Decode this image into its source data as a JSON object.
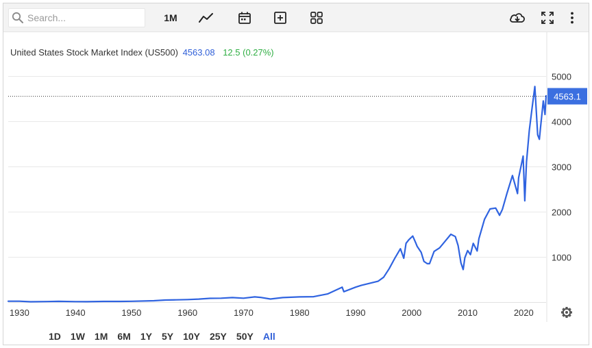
{
  "toolbar": {
    "search_placeholder": "Search...",
    "interval_label": "1M",
    "icons": [
      "search-icon",
      "line-chart-icon",
      "calendar-icon",
      "add-box-icon",
      "grid-icon",
      "download-cloud-icon",
      "fullscreen-icon",
      "more-vertical-icon"
    ]
  },
  "header": {
    "name": "United States Stock Market Index (US500)",
    "price": "4563.08",
    "change": "12.5 (0.27%)"
  },
  "colors": {
    "line": "#2f63e0",
    "price_badge": "#3b6fe0",
    "positive": "#2fae43",
    "grid": "#e8e8e8"
  },
  "ranges": {
    "items": [
      "1D",
      "1W",
      "1M",
      "6M",
      "1Y",
      "5Y",
      "10Y",
      "25Y",
      "50Y",
      "All"
    ],
    "active": "All"
  },
  "chart_data": {
    "type": "line",
    "x_unit": "year",
    "xlim": [
      1928,
      2024
    ],
    "ylim": [
      0,
      5000
    ],
    "x_ticks": [
      1930,
      1940,
      1950,
      1960,
      1970,
      1980,
      1990,
      2000,
      2010,
      2020
    ],
    "y_ticks": [
      1000,
      2000,
      3000,
      4000,
      5000
    ],
    "y_axis_side": "right",
    "grid": "horizontal",
    "last_value_label": "4563.1",
    "last_value": 4563.08,
    "series": [
      {
        "x": [
          1928.0,
          1930.0,
          1932.0,
          1935.0,
          1937.0,
          1940.0,
          1942.0,
          1945.0,
          1948.0,
          1950.0,
          1954.0,
          1956.0,
          1958.0,
          1960.0,
          1962.0,
          1964.0,
          1966.0,
          1968.0,
          1970.0,
          1972.0,
          1973.0,
          1974.8,
          1977.0,
          1980.0,
          1982.5,
          1985.0,
          1987.6,
          1987.9,
          1990.0,
          1991.0,
          1994.0,
          1995.0,
          1996.0,
          1997.0,
          1998.0,
          1998.6,
          1999.0,
          1999.5,
          2000.2,
          2000.7,
          2001.0,
          2001.7,
          2002.2,
          2002.8,
          2003.2,
          2004.0,
          2005.0,
          2006.0,
          2007.0,
          2007.8,
          2008.3,
          2008.8,
          2009.2,
          2009.5,
          2010.0,
          2010.5,
          2011.0,
          2011.7,
          2012.0,
          2013.0,
          2014.0,
          2015.0,
          2015.7,
          2016.2,
          2017.0,
          2018.0,
          2018.9,
          2019.1,
          2019.9,
          2020.2,
          2020.5,
          2021.0,
          2021.5,
          2021.99,
          2022.5,
          2022.8,
          2023.0,
          2023.5,
          2023.8,
          2024.0
        ],
        "y": [
          20,
          20,
          7,
          12,
          16,
          11,
          9,
          15,
          15,
          18,
          30,
          45,
          50,
          56,
          67,
          84,
          86,
          100,
          87,
          115,
          105,
          68,
          100,
          115,
          120,
          180,
          330,
          230,
          330,
          370,
          460,
          550,
          740,
          970,
          1180,
          970,
          1300,
          1380,
          1460,
          1320,
          1230,
          1100,
          900,
          850,
          850,
          1120,
          1200,
          1350,
          1500,
          1450,
          1250,
          870,
          720,
          980,
          1140,
          1050,
          1300,
          1130,
          1400,
          1830,
          2060,
          2080,
          1920,
          2050,
          2400,
          2800,
          2400,
          2750,
          3230,
          2240,
          3100,
          3800,
          4300,
          4770,
          3700,
          3600,
          3850,
          4450,
          4150,
          4563
        ]
      }
    ]
  }
}
